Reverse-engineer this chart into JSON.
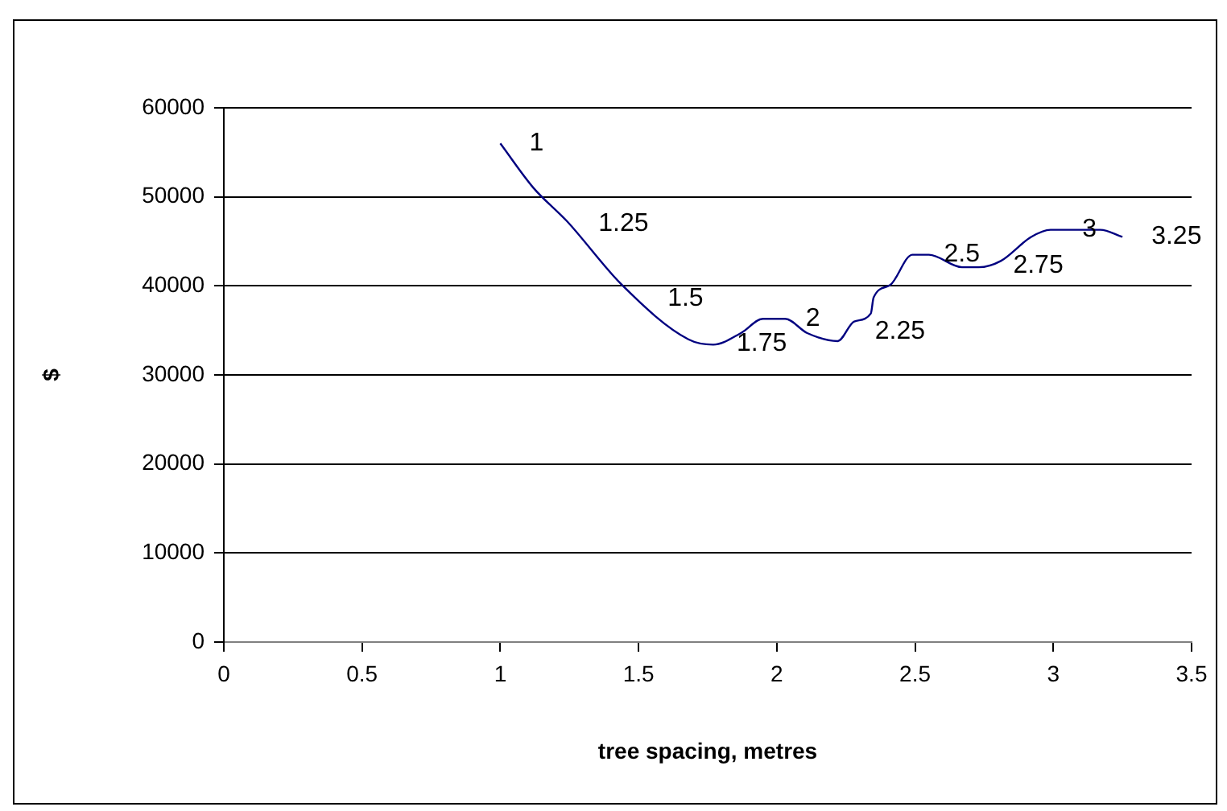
{
  "chart_data": {
    "type": "line",
    "xlabel": "tree spacing, metres",
    "ylabel": "$",
    "x": [
      1.0,
      1.12,
      1.24,
      1.44,
      1.68,
      1.77,
      1.87,
      1.95,
      2.03,
      2.11,
      2.22,
      2.28,
      2.34,
      2.35,
      2.41,
      2.49,
      2.55,
      2.67,
      2.73,
      2.81,
      2.92,
      2.99,
      3.17,
      3.25
    ],
    "series": [
      {
        "color": "#000080",
        "values": [
          56000,
          51000,
          47300,
          40100,
          34000,
          33400,
          34700,
          36300,
          36300,
          34700,
          33800,
          36000,
          36900,
          38700,
          40100,
          43500,
          43500,
          42100,
          42100,
          42800,
          45500,
          46300,
          46300,
          45500
        ]
      }
    ],
    "xlim": [
      0,
      3.5
    ],
    "xticks": [
      0,
      0.5,
      1,
      1.5,
      2,
      2.5,
      3,
      3.5
    ],
    "ylim": [
      0,
      60000
    ],
    "yticks": [
      0,
      10000,
      20000,
      30000,
      40000,
      50000,
      60000
    ],
    "grid": "y",
    "legend": false,
    "marker": "none",
    "line_style": "solid",
    "annotations": [
      {
        "text": "1",
        "x": 1,
        "y": 56000
      },
      {
        "text": "1.25",
        "x": 1.25,
        "y": 47000
      },
      {
        "text": "1.5",
        "x": 1.5,
        "y": 38600
      },
      {
        "text": "1.75",
        "x": 1.75,
        "y": 33500
      },
      {
        "text": "2",
        "x": 2,
        "y": 36300
      },
      {
        "text": "2.25",
        "x": 2.25,
        "y": 34900
      },
      {
        "text": "2.5",
        "x": 2.5,
        "y": 43500
      },
      {
        "text": "2.75",
        "x": 2.75,
        "y": 42300
      },
      {
        "text": "3",
        "x": 3,
        "y": 46300
      },
      {
        "text": "3.25",
        "x": 3.25,
        "y": 45500
      }
    ]
  }
}
